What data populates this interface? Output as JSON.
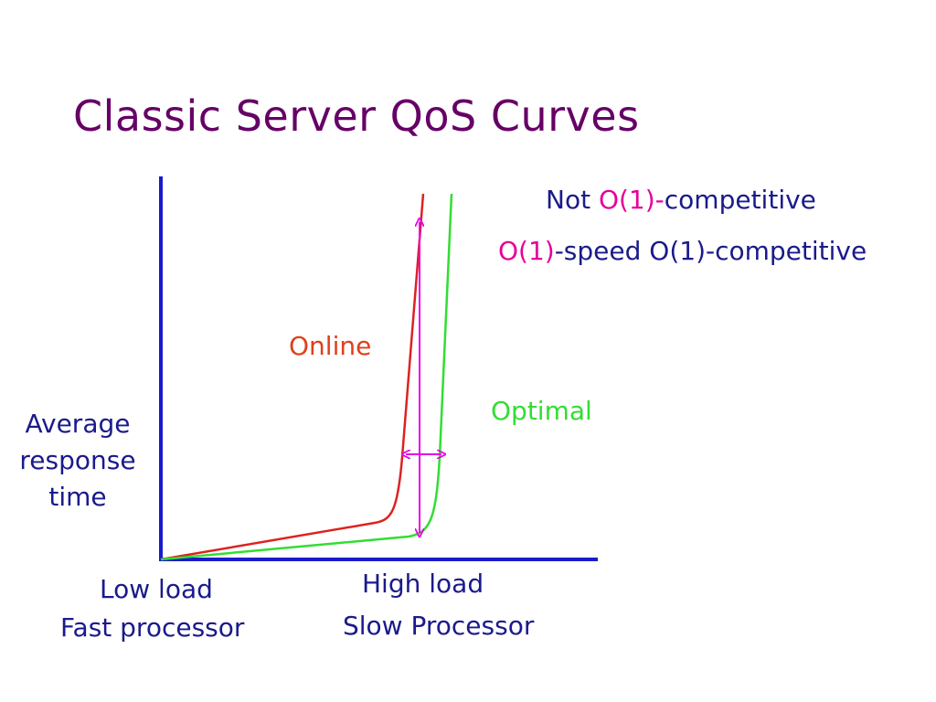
{
  "slide": {
    "title": "Classic Server QoS Curves"
  },
  "legend": {
    "line1": {
      "prefix": "Not ",
      "highlight": "O(1)-",
      "suffix": "competitive"
    },
    "line2": {
      "highlight": "O(1)",
      "suffix": "-speed O(1)-competitive"
    }
  },
  "curves": {
    "online_label": "Online",
    "optimal_label": "Optimal"
  },
  "axes": {
    "ylabel_lines": [
      "Average",
      "response",
      "time"
    ],
    "x_left_lines": [
      "Low load",
      "Fast processor"
    ],
    "x_right_lines": [
      "High load",
      "Slow Processor"
    ]
  },
  "colors": {
    "title": "#660066",
    "axis": "#1a1acc",
    "online": "#dd2222",
    "optimal": "#33dd33",
    "arrow": "#e600e6",
    "text": "#1a1a8c"
  }
}
